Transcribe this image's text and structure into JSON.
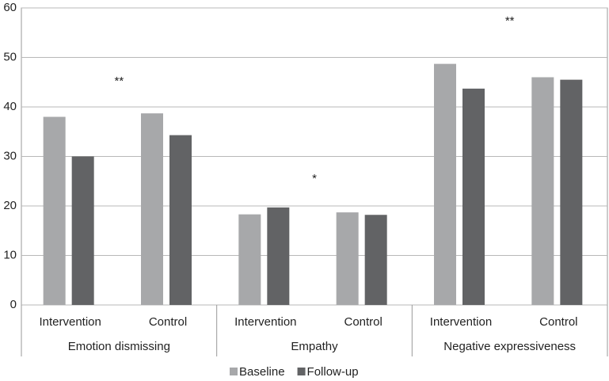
{
  "chart_data": {
    "type": "bar",
    "groups": [
      "Emotion dismissing",
      "Empathy",
      "Negative expressiveness"
    ],
    "categories": [
      "Intervention",
      "Control",
      "Intervention",
      "Control",
      "Intervention",
      "Control"
    ],
    "series": [
      {
        "name": "Baseline",
        "color": "#a7a8aa",
        "values": [
          38,
          38.7,
          18.3,
          18.7,
          48.7,
          46
        ]
      },
      {
        "name": "Follow-up",
        "color": "#626365",
        "values": [
          30,
          34.3,
          19.7,
          18.2,
          43.7,
          45.5
        ]
      }
    ],
    "annotations": [
      "**",
      "*",
      "**"
    ],
    "ylim": [
      0,
      60
    ],
    "yticks": [
      0,
      10,
      20,
      30,
      40,
      50,
      60
    ],
    "grid": true,
    "legend": "bottom"
  }
}
